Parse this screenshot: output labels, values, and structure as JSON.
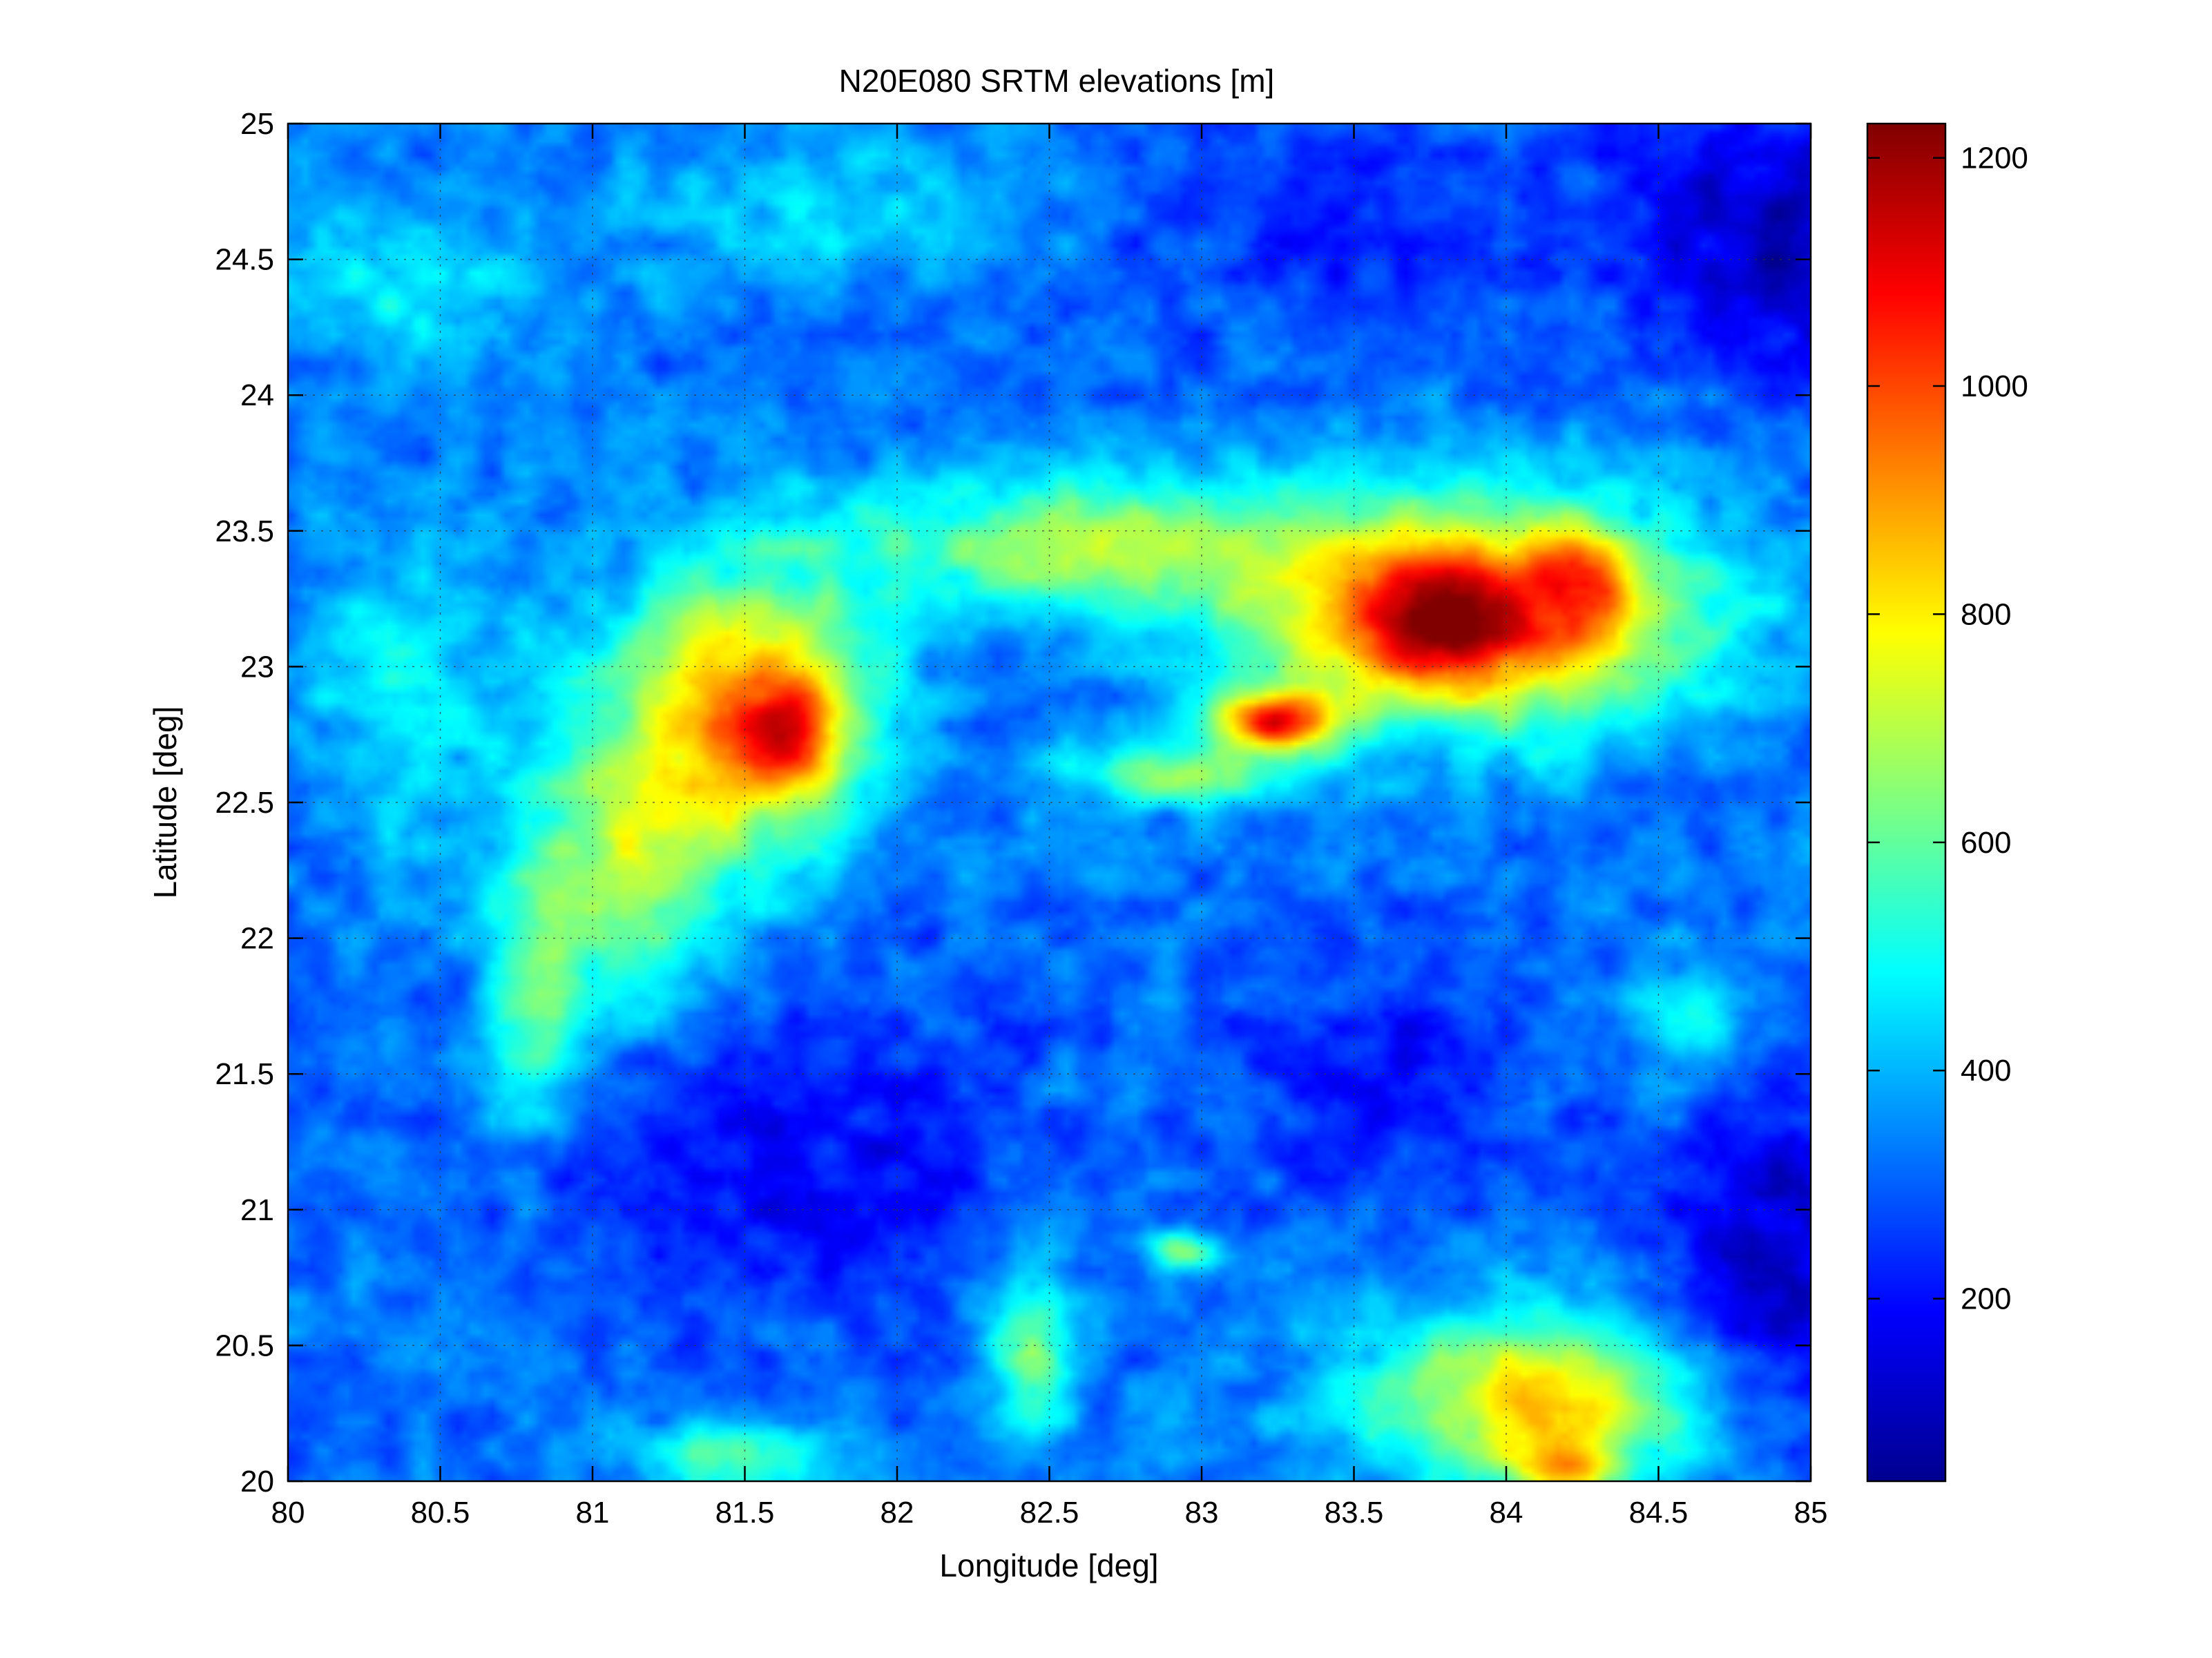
{
  "chart_data": {
    "type": "heatmap",
    "title": "N20E080 SRTM elevations [m]",
    "xlabel": "Longitude [deg]",
    "ylabel": "Latitude [deg]",
    "xlim": [
      80,
      85
    ],
    "ylim": [
      20,
      25
    ],
    "x_ticks": [
      "80",
      "80.5",
      "81",
      "81.5",
      "82",
      "82.5",
      "83",
      "83.5",
      "84",
      "84.5",
      "85"
    ],
    "y_ticks": [
      "20",
      "20.5",
      "21",
      "21.5",
      "22",
      "22.5",
      "23",
      "23.5",
      "24",
      "24.5",
      "25"
    ],
    "grid": true,
    "colormap": "jet",
    "colorbar": {
      "ticks": [
        "200",
        "400",
        "600",
        "800",
        "1000",
        "1200"
      ],
      "range": [
        40,
        1230
      ]
    },
    "base_elevation": 330,
    "features": [
      {
        "lon": 81.5,
        "lat": 22.85,
        "sx": 0.3,
        "sy": 0.35,
        "amp": 560
      },
      {
        "lon": 81.65,
        "lat": 22.75,
        "sx": 0.12,
        "sy": 0.16,
        "amp": 320
      },
      {
        "lon": 81.1,
        "lat": 22.2,
        "sx": 0.25,
        "sy": 0.35,
        "amp": 350
      },
      {
        "lon": 80.8,
        "lat": 21.7,
        "sx": 0.1,
        "sy": 0.3,
        "amp": 250
      },
      {
        "lon": 83.9,
        "lat": 23.2,
        "sx": 0.5,
        "sy": 0.28,
        "amp": 720
      },
      {
        "lon": 83.75,
        "lat": 23.15,
        "sx": 0.18,
        "sy": 0.14,
        "amp": 300
      },
      {
        "lon": 84.25,
        "lat": 23.35,
        "sx": 0.1,
        "sy": 0.12,
        "amp": 260
      },
      {
        "lon": 83.25,
        "lat": 22.8,
        "sx": 0.15,
        "sy": 0.08,
        "amp": 650
      },
      {
        "lon": 82.6,
        "lat": 23.45,
        "sx": 0.55,
        "sy": 0.18,
        "amp": 340
      },
      {
        "lon": 82.9,
        "lat": 22.6,
        "sx": 0.25,
        "sy": 0.08,
        "amp": 300
      },
      {
        "lon": 84.1,
        "lat": 20.3,
        "sx": 0.4,
        "sy": 0.22,
        "amp": 500
      },
      {
        "lon": 84.2,
        "lat": 20.05,
        "sx": 0.12,
        "sy": 0.08,
        "amp": 380
      },
      {
        "lon": 81.5,
        "lat": 20.1,
        "sx": 0.2,
        "sy": 0.1,
        "amp": 300
      },
      {
        "lon": 82.45,
        "lat": 20.5,
        "sx": 0.1,
        "sy": 0.22,
        "amp": 320
      },
      {
        "lon": 82.95,
        "lat": 20.85,
        "sx": 0.08,
        "sy": 0.05,
        "amp": 350
      },
      {
        "lon": 81.6,
        "lat": 21.2,
        "sx": 0.55,
        "sy": 0.45,
        "amp": -140
      },
      {
        "lon": 83.6,
        "lat": 21.5,
        "sx": 0.4,
        "sy": 0.35,
        "amp": -110
      },
      {
        "lon": 84.9,
        "lat": 20.8,
        "sx": 0.3,
        "sy": 0.5,
        "amp": -200
      },
      {
        "lon": 84.9,
        "lat": 24.6,
        "sx": 0.35,
        "sy": 0.4,
        "amp": -200
      },
      {
        "lon": 83.4,
        "lat": 24.65,
        "sx": 0.6,
        "sy": 0.25,
        "amp": -110
      },
      {
        "lon": 81.9,
        "lat": 24.7,
        "sx": 0.6,
        "sy": 0.2,
        "amp": 120
      },
      {
        "lon": 80.4,
        "lat": 24.4,
        "sx": 0.3,
        "sy": 0.2,
        "amp": 150
      },
      {
        "lon": 84.6,
        "lat": 21.7,
        "sx": 0.15,
        "sy": 0.15,
        "amp": 200
      },
      {
        "lon": 80.4,
        "lat": 22.9,
        "sx": 0.25,
        "sy": 0.4,
        "amp": 150
      }
    ]
  }
}
